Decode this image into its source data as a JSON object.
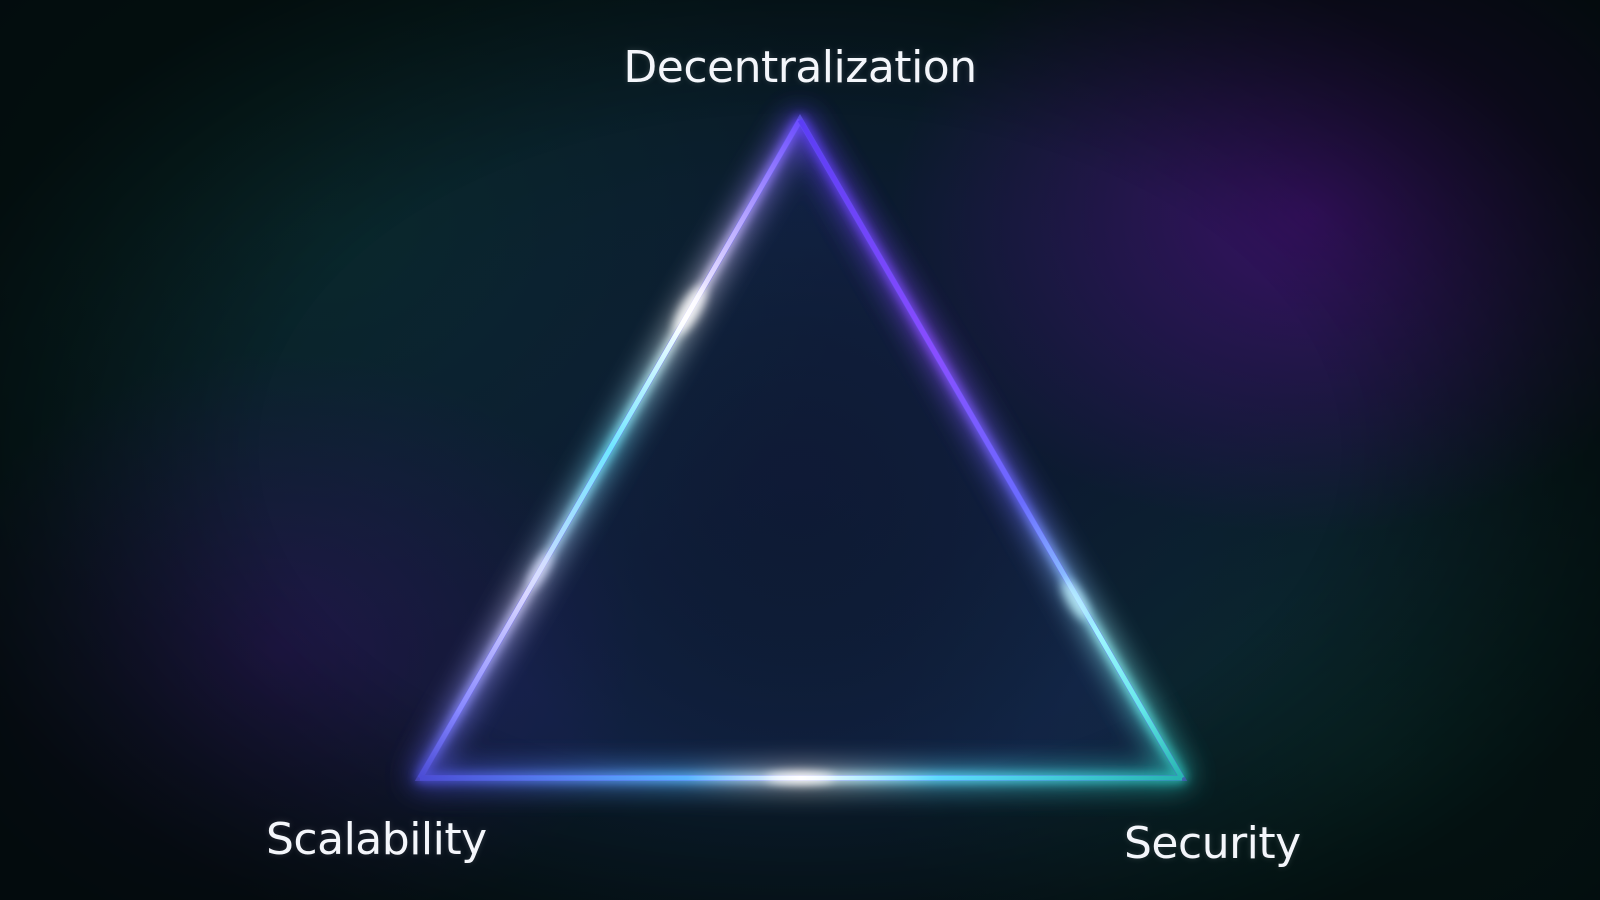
{
  "diagram": {
    "title": "",
    "vertices": {
      "top": "Decentralization",
      "bottom_left": "Scalability",
      "bottom_right": "Security"
    }
  },
  "colors": {
    "background": "#0b1b2e",
    "glow_purple": "#7a4dff",
    "glow_blue": "#5a7bff",
    "glow_cyan": "#2ef0e6",
    "label_text": "#f4f6fb"
  }
}
